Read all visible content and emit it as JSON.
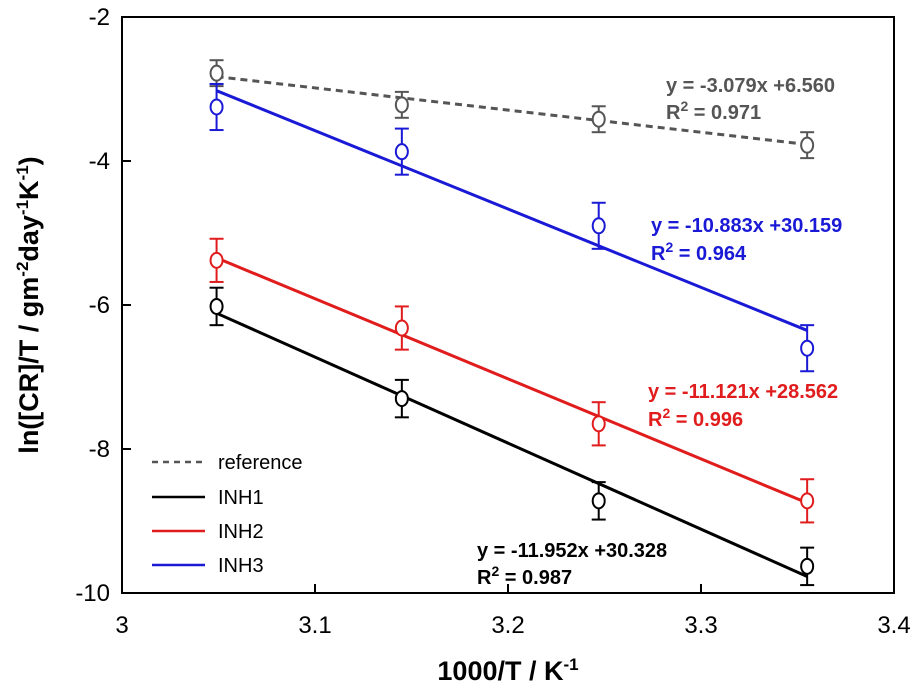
{
  "chart_data": {
    "type": "scatter",
    "xlabel": "1000/T / K",
    "xlabel_sup": "-1",
    "ylabel_parts": [
      "ln([CR]/T / gm",
      "-2",
      "day",
      "-1",
      "K",
      "-1",
      ")"
    ],
    "xlim": [
      3.0,
      3.4
    ],
    "ylim": [
      -10,
      -2
    ],
    "xticks": [
      "3",
      "3.1",
      "3.2",
      "3.3",
      "3.4"
    ],
    "yticks": [
      "-2",
      "-4",
      "-6",
      "-8",
      "-10"
    ],
    "xtick_values": [
      3.0,
      3.1,
      3.2,
      3.3,
      3.4
    ],
    "ytick_values": [
      -2,
      -4,
      -6,
      -8,
      -10
    ],
    "grid": false,
    "legend_position": "bottom-left",
    "series": [
      {
        "name": "reference",
        "color": "#555555",
        "line_style": "dashed",
        "x": [
          3.049,
          3.145,
          3.247,
          3.355
        ],
        "y": [
          -2.78,
          -3.22,
          -3.42,
          -3.78
        ],
        "yerr": [
          0.18,
          0.18,
          0.18,
          0.18
        ],
        "fit": {
          "slope": -3.079,
          "intercept": 6.56
        },
        "equation": "y = -3.079x +6.560",
        "r2_prefix": "R",
        "r2_value": " = 0.971"
      },
      {
        "name": "INH3",
        "color": "#1a1ad6",
        "line_style": "solid",
        "x": [
          3.049,
          3.145,
          3.247,
          3.355
        ],
        "y": [
          -3.25,
          -3.87,
          -4.9,
          -6.6
        ],
        "yerr": [
          0.32,
          0.32,
          0.32,
          0.32
        ],
        "fit": {
          "slope": -10.883,
          "intercept": 30.159
        },
        "equation": "y = -10.883x +30.159",
        "r2_prefix": "R",
        "r2_value": " = 0.964"
      },
      {
        "name": "INH2",
        "color": "#e01c1c",
        "line_style": "solid",
        "x": [
          3.049,
          3.145,
          3.247,
          3.355
        ],
        "y": [
          -5.38,
          -6.32,
          -7.65,
          -8.72
        ],
        "yerr": [
          0.3,
          0.3,
          0.3,
          0.3
        ],
        "fit": {
          "slope": -11.121,
          "intercept": 28.562
        },
        "equation": "y = -11.121x +28.562",
        "r2_prefix": "R",
        "r2_value": " = 0.996"
      },
      {
        "name": "INH1",
        "color": "#000000",
        "line_style": "solid",
        "x": [
          3.049,
          3.145,
          3.247,
          3.355
        ],
        "y": [
          -6.02,
          -7.3,
          -8.72,
          -9.63
        ],
        "yerr": [
          0.26,
          0.26,
          0.26,
          0.26
        ],
        "fit": {
          "slope": -11.952,
          "intercept": 30.328
        },
        "equation": "y = -11.952x +30.328",
        "r2_prefix": "R",
        "r2_value": " = 0.987"
      }
    ],
    "legend_order": [
      "reference",
      "INH1",
      "INH2",
      "INH3"
    ],
    "r2_superscript": "2"
  }
}
